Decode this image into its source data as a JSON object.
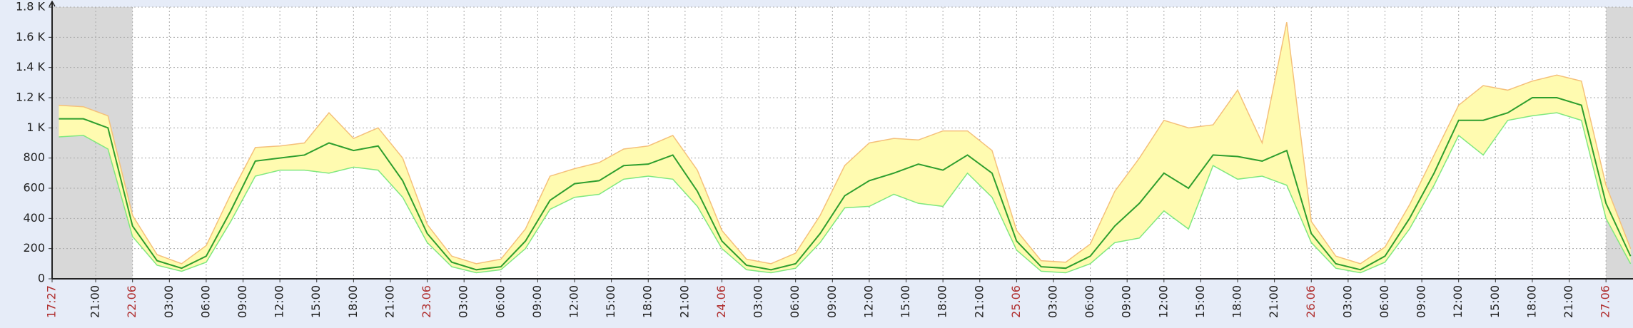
{
  "chart_data": {
    "type": "line",
    "x": [
      -6,
      -4,
      -2,
      0,
      2,
      4,
      6,
      8,
      10,
      12,
      14,
      16,
      18,
      20,
      22,
      24,
      26,
      28,
      30,
      32,
      34,
      36,
      38,
      40,
      42,
      44,
      46,
      48,
      50,
      52,
      54,
      56,
      58,
      60,
      62,
      64,
      66,
      68,
      70,
      72,
      74,
      76,
      78,
      80,
      82,
      84,
      86,
      88,
      90,
      92,
      94,
      96,
      98,
      100,
      102,
      104,
      106,
      108,
      110,
      112,
      114,
      116,
      118,
      120,
      122
    ],
    "series": [
      {
        "color": "#f5c07a",
        "values": [
          1150,
          1140,
          1080,
          420,
          160,
          100,
          220,
          560,
          870,
          880,
          900,
          1100,
          930,
          1000,
          800,
          360,
          150,
          100,
          130,
          330,
          680,
          730,
          770,
          860,
          880,
          950,
          720,
          320,
          130,
          100,
          170,
          420,
          750,
          900,
          930,
          920,
          980,
          980,
          850,
          320,
          120,
          110,
          230,
          580,
          800,
          1050,
          1000,
          1020,
          1250,
          900,
          1700,
          380,
          150,
          100,
          210,
          490,
          820,
          1150,
          1280,
          1250,
          1310,
          1350,
          1310,
          620,
          200
        ]
      },
      {
        "color": "#2e9e2e",
        "values": [
          1060,
          1060,
          1000,
          350,
          120,
          70,
          150,
          450,
          780,
          800,
          820,
          900,
          850,
          880,
          650,
          300,
          110,
          60,
          80,
          250,
          520,
          630,
          650,
          750,
          760,
          820,
          580,
          250,
          90,
          60,
          100,
          300,
          550,
          650,
          700,
          760,
          720,
          820,
          700,
          250,
          80,
          70,
          150,
          350,
          500,
          700,
          600,
          820,
          810,
          780,
          850,
          300,
          100,
          60,
          150,
          400,
          700,
          1050,
          1050,
          1100,
          1200,
          1200,
          1150,
          500,
          150
        ]
      },
      {
        "color": "#7fe87f",
        "values": [
          940,
          950,
          860,
          280,
          90,
          50,
          110,
          380,
          680,
          720,
          720,
          700,
          740,
          720,
          540,
          240,
          80,
          40,
          60,
          200,
          460,
          540,
          560,
          660,
          680,
          660,
          480,
          200,
          60,
          40,
          70,
          240,
          470,
          480,
          560,
          500,
          480,
          700,
          540,
          190,
          50,
          40,
          100,
          240,
          270,
          450,
          330,
          750,
          660,
          680,
          620,
          240,
          70,
          40,
          110,
          330,
          620,
          950,
          820,
          1050,
          1080,
          1100,
          1050,
          400,
          100
        ]
      }
    ],
    "band_color": "#fffbb0",
    "shaded_ranges": [
      [
        -6.55,
        0
      ],
      [
        120,
        122.2
      ]
    ],
    "xlim": [
      -6.55,
      122.2
    ],
    "xticks": [
      {
        "value": -6.55,
        "label": "17:27"
      },
      {
        "value": -3,
        "label": "21:00"
      },
      {
        "value": 0,
        "label": "22.06"
      },
      {
        "value": 3,
        "label": "03:00"
      },
      {
        "value": 6,
        "label": "06:00"
      },
      {
        "value": 9,
        "label": "09:00"
      },
      {
        "value": 12,
        "label": "12:00"
      },
      {
        "value": 15,
        "label": "15:00"
      },
      {
        "value": 18,
        "label": "18:00"
      },
      {
        "value": 21,
        "label": "21:00"
      },
      {
        "value": 24,
        "label": "23.06"
      },
      {
        "value": 27,
        "label": "03:00"
      },
      {
        "value": 30,
        "label": "06:00"
      },
      {
        "value": 33,
        "label": "09:00"
      },
      {
        "value": 36,
        "label": "12:00"
      },
      {
        "value": 39,
        "label": "15:00"
      },
      {
        "value": 42,
        "label": "18:00"
      },
      {
        "value": 45,
        "label": "21:00"
      },
      {
        "value": 48,
        "label": "24.06"
      },
      {
        "value": 51,
        "label": "03:00"
      },
      {
        "value": 54,
        "label": "06:00"
      },
      {
        "value": 57,
        "label": "09:00"
      },
      {
        "value": 60,
        "label": "12:00"
      },
      {
        "value": 63,
        "label": "15:00"
      },
      {
        "value": 66,
        "label": "18:00"
      },
      {
        "value": 69,
        "label": "21:00"
      },
      {
        "value": 72,
        "label": "25.06"
      },
      {
        "value": 75,
        "label": "03:00"
      },
      {
        "value": 78,
        "label": "06:00"
      },
      {
        "value": 81,
        "label": "09:00"
      },
      {
        "value": 84,
        "label": "12:00"
      },
      {
        "value": 87,
        "label": "15:00"
      },
      {
        "value": 90,
        "label": "18:00"
      },
      {
        "value": 93,
        "label": "21:00"
      },
      {
        "value": 96,
        "label": "26.06"
      },
      {
        "value": 99,
        "label": "03:00"
      },
      {
        "value": 102,
        "label": "06:00"
      },
      {
        "value": 105,
        "label": "09:00"
      },
      {
        "value": 108,
        "label": "12:00"
      },
      {
        "value": 111,
        "label": "15:00"
      },
      {
        "value": 114,
        "label": "18:00"
      },
      {
        "value": 117,
        "label": "21:00"
      },
      {
        "value": 120,
        "label": "27.06"
      }
    ],
    "ylim": [
      0,
      1800
    ],
    "yticks": [
      0,
      200,
      400,
      600,
      800,
      {
        "value": 1000,
        "label": "1 K"
      },
      {
        "value": 1200,
        "label": "1.2 K"
      },
      {
        "value": 1400,
        "label": "1.4 K"
      },
      {
        "value": 1600,
        "label": "1.6 K"
      },
      {
        "value": 1800,
        "label": "1.8 K"
      }
    ],
    "grid": true
  }
}
